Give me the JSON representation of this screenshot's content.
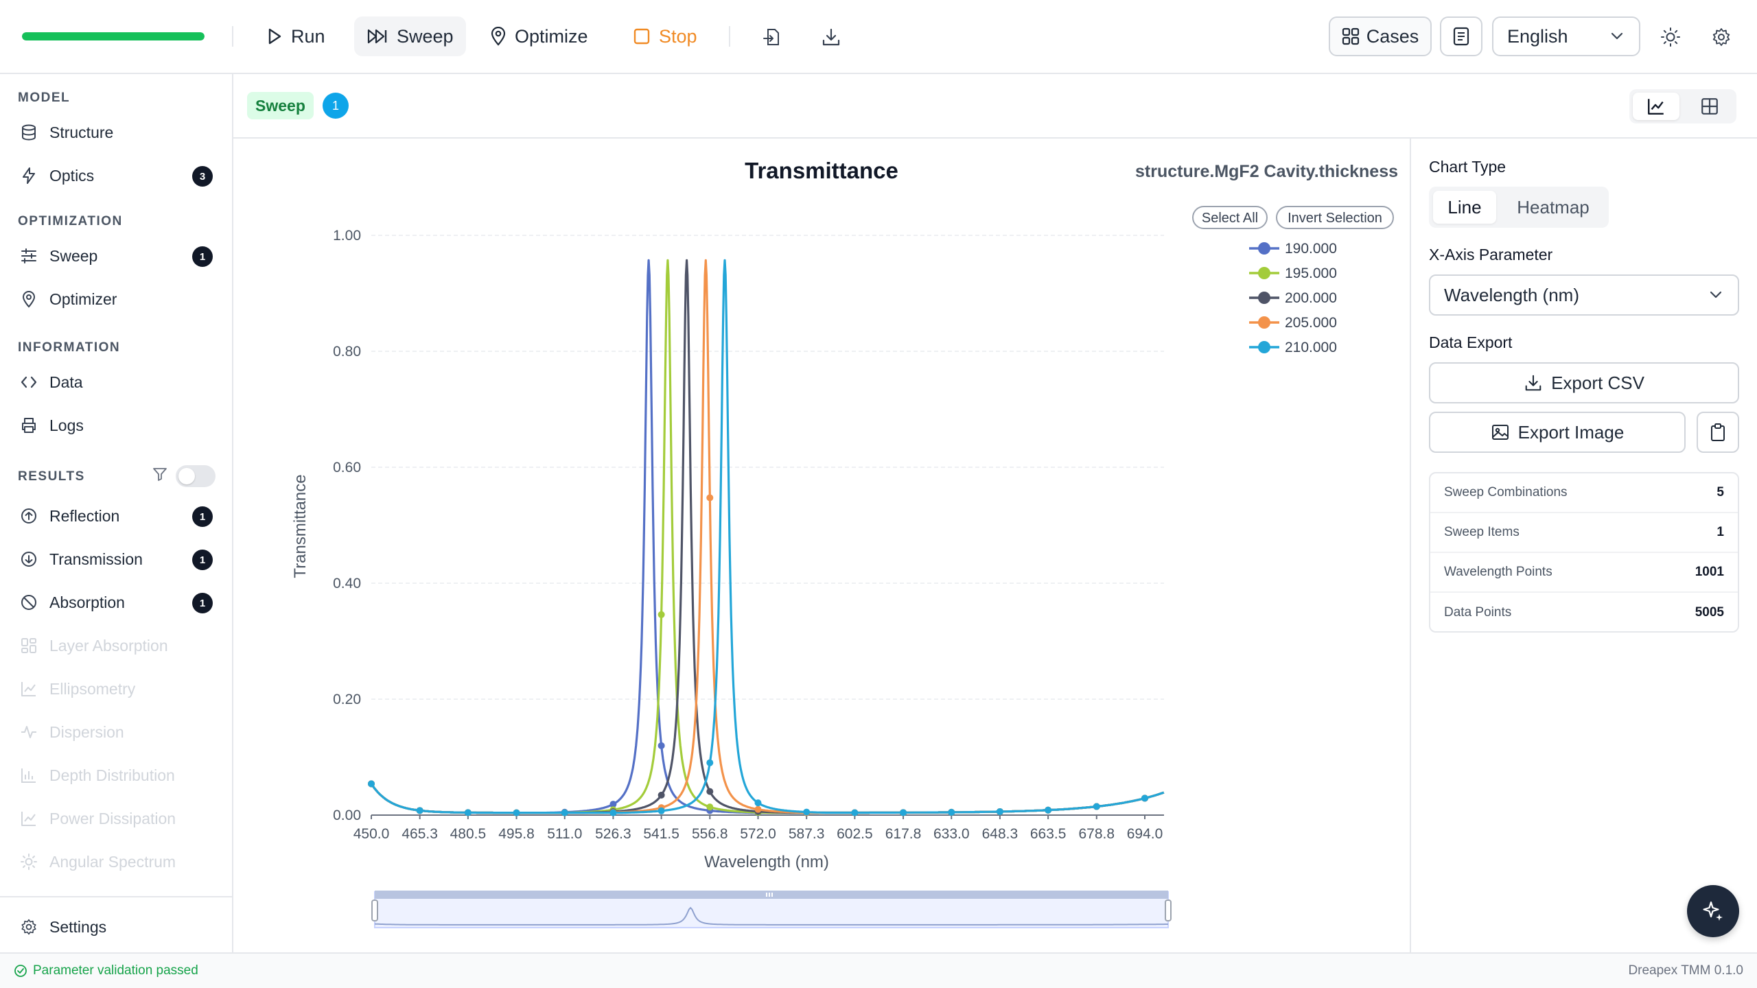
{
  "toolbar": {
    "progress": 1.0,
    "run_label": "Run",
    "sweep_label": "Sweep",
    "optimize_label": "Optimize",
    "stop_label": "Stop",
    "cases_label": "Cases",
    "language": "English"
  },
  "sidebar": {
    "model_title": "MODEL",
    "structure": "Structure",
    "optics": "Optics",
    "optics_badge": "3",
    "optimization_title": "OPTIMIZATION",
    "sweep": "Sweep",
    "sweep_badge": "1",
    "optimizer": "Optimizer",
    "information_title": "INFORMATION",
    "data": "Data",
    "logs": "Logs",
    "results_title": "RESULTS",
    "reflection": "Reflection",
    "reflection_badge": "1",
    "transmission": "Transmission",
    "transmission_badge": "1",
    "absorption": "Absorption",
    "absorption_badge": "1",
    "layer_absorption": "Layer Absorption",
    "ellipsometry": "Ellipsometry",
    "dispersion": "Dispersion",
    "depth_distribution": "Depth Distribution",
    "power_dissipation": "Power Dissipation",
    "angular_spectrum": "Angular Spectrum",
    "settings": "Settings"
  },
  "subheader": {
    "tag": "Sweep",
    "count": "1"
  },
  "chart_data": {
    "type": "line",
    "title": "Transmittance",
    "subtitle": "structure.MgF2 Cavity.thickness",
    "xlabel": "Wavelength (nm)",
    "ylabel": "Transmittance",
    "select_all": "Select All",
    "invert_selection": "Invert Selection",
    "xlim": [
      450,
      700
    ],
    "ylim": [
      0,
      1.0
    ],
    "x_ticks": [
      "450.0",
      "465.3",
      "480.5",
      "495.8",
      "511.0",
      "526.3",
      "541.5",
      "556.8",
      "572.0",
      "587.3",
      "602.5",
      "617.8",
      "633.0",
      "648.3",
      "663.5",
      "678.8",
      "694.0"
    ],
    "y_ticks": [
      "0.00",
      "0.20",
      "0.40",
      "0.60",
      "0.80",
      "1.00"
    ],
    "legend_position": "top-right",
    "series": [
      {
        "name": "190.000",
        "color": "#5470c6",
        "peak": 537.5,
        "gamma": 1.5
      },
      {
        "name": "195.000",
        "color": "#a3cc3a",
        "peak": 543.5,
        "gamma": 1.5
      },
      {
        "name": "200.000",
        "color": "#4f5467",
        "peak": 549.5,
        "gamma": 1.5
      },
      {
        "name": "205.000",
        "color": "#f3924a",
        "peak": 555.5,
        "gamma": 1.5
      },
      {
        "name": "210.000",
        "color": "#23a6d8",
        "peak": 561.5,
        "gamma": 1.5
      }
    ],
    "peak_value": 0.955
  },
  "panel": {
    "chart_type_label": "Chart Type",
    "line": "Line",
    "heatmap": "Heatmap",
    "x_axis_label": "X-Axis Parameter",
    "x_axis_value": "Wavelength (nm)",
    "data_export_label": "Data Export",
    "export_csv": "Export CSV",
    "export_image": "Export Image",
    "stats": [
      {
        "label": "Sweep Combinations",
        "value": "5"
      },
      {
        "label": "Sweep Items",
        "value": "1"
      },
      {
        "label": "Wavelength Points",
        "value": "1001"
      },
      {
        "label": "Data Points",
        "value": "5005"
      }
    ]
  },
  "status": {
    "message": "Parameter validation passed",
    "version": "Dreapex TMM 0.1.0"
  }
}
